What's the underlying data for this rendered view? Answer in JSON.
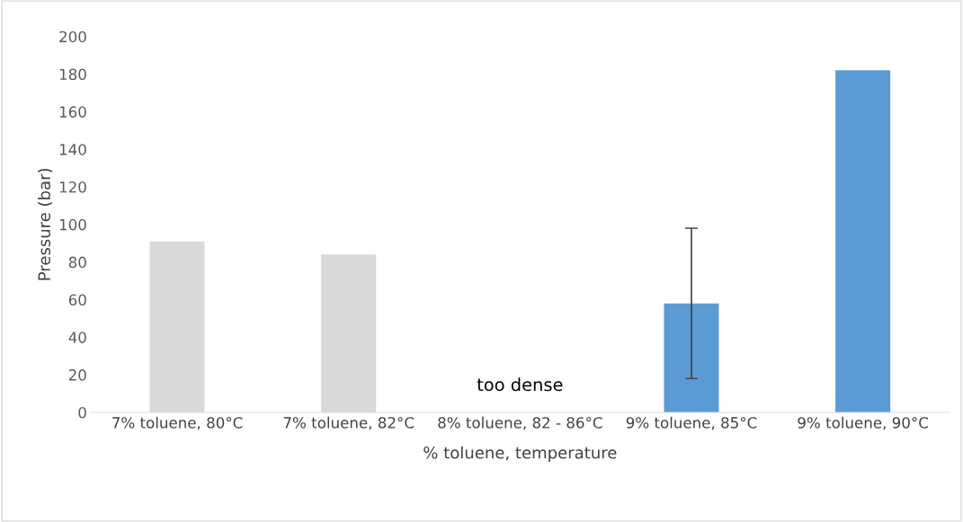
{
  "chart_data": {
    "type": "bar",
    "xlabel": "% toluene, temperature",
    "ylabel": "Pressure (bar)",
    "categories": [
      "7% toluene, 80°C",
      "7% toluene, 82°C",
      "8% toluene, 82 - 86°C",
      "9% toluene, 85°C",
      "9% toluene, 90°C"
    ],
    "values": [
      91,
      84,
      null,
      58,
      182
    ],
    "colors": [
      "#d9d9d9",
      "#d9d9d9",
      "#d9d9d9",
      "#5b9bd5",
      "#5b9bd5"
    ],
    "errors": [
      null,
      null,
      null,
      [
        18,
        98
      ],
      null
    ],
    "ylim": [
      0,
      200
    ],
    "yticks": [
      0,
      20,
      40,
      60,
      80,
      100,
      120,
      140,
      160,
      180,
      200
    ],
    "annotations": [
      "too dense"
    ],
    "grid": false,
    "legend": false
  }
}
